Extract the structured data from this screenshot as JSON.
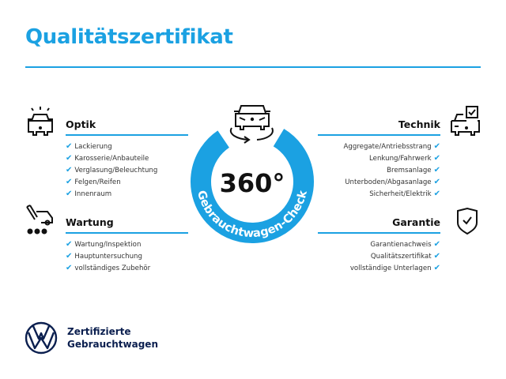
{
  "title": "Qualitätszertifikat",
  "badge": {
    "value": "360°",
    "ring_text": "Gebrauchtwagen-Check",
    "color": "#1ba1e2"
  },
  "sections": {
    "optik": {
      "heading": "Optik",
      "icon": "car-lights-icon",
      "items": [
        "Lackierung",
        "Karosserie/Anbauteile",
        "Verglasung/Beleuchtung",
        "Felgen/Reifen",
        "Innenraum"
      ]
    },
    "wartung": {
      "heading": "Wartung",
      "icon": "service-truck-icon",
      "items": [
        "Wartung/Inspektion",
        "Hauptuntersuchung",
        "vollständiges Zubehör"
      ]
    },
    "technik": {
      "heading": "Technik",
      "icon": "car-checkbox-icon",
      "items": [
        "Aggregate/Antriebsstrang",
        "Lenkung/Fahrwerk",
        "Bremsanlage",
        "Unterboden/Abgasanlage",
        "Sicherheit/Elektrik"
      ]
    },
    "garantie": {
      "heading": "Garantie",
      "icon": "shield-check-icon",
      "items": [
        "Garantienachweis",
        "Qualitätszertifikat",
        "vollständige Unterlagen"
      ]
    }
  },
  "check_glyph": "✔",
  "brand": {
    "line1": "Zertifizierte",
    "line2": "Gebrauchtwagen",
    "logo": "vw-logo",
    "color": "#0b1f4f"
  }
}
